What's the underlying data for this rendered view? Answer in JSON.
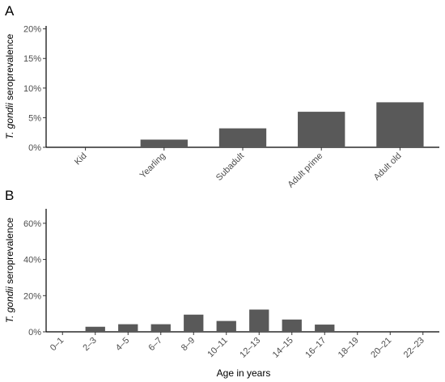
{
  "chart_data": [
    {
      "type": "bar",
      "panel": "A",
      "categories": [
        "Kid",
        "Yearling",
        "Subadult",
        "Adult prime",
        "Adult old"
      ],
      "values": [
        0,
        1.3,
        3.2,
        6.0,
        7.6
      ],
      "ylabel_italic": "T. gondii",
      "ylabel_rest": " seroprevalence",
      "yticks": [
        "0%",
        "5%",
        "10%",
        "15%",
        "20%"
      ],
      "ytick_values": [
        0,
        5,
        10,
        15,
        20
      ],
      "ylim": [
        0,
        20.5
      ],
      "xlabel": "",
      "grid": false
    },
    {
      "type": "bar",
      "panel": "B",
      "categories": [
        "0–1",
        "2–3",
        "4–5",
        "6–7",
        "8–9",
        "10–11",
        "12–13",
        "14–15",
        "16–17",
        "18–19",
        "20–21",
        "22–23"
      ],
      "values": [
        0,
        2.8,
        4.2,
        4.2,
        9.5,
        6.0,
        12.3,
        6.8,
        4.0,
        0,
        0,
        0
      ],
      "ylabel_italic": "T. gondii",
      "ylabel_rest": " seroprevalence",
      "yticks": [
        "0%",
        "20%",
        "40%",
        "60%"
      ],
      "ytick_values": [
        0,
        20,
        40,
        60
      ],
      "ylim": [
        0,
        68
      ],
      "xlabel": "Age in years",
      "grid": false
    }
  ]
}
